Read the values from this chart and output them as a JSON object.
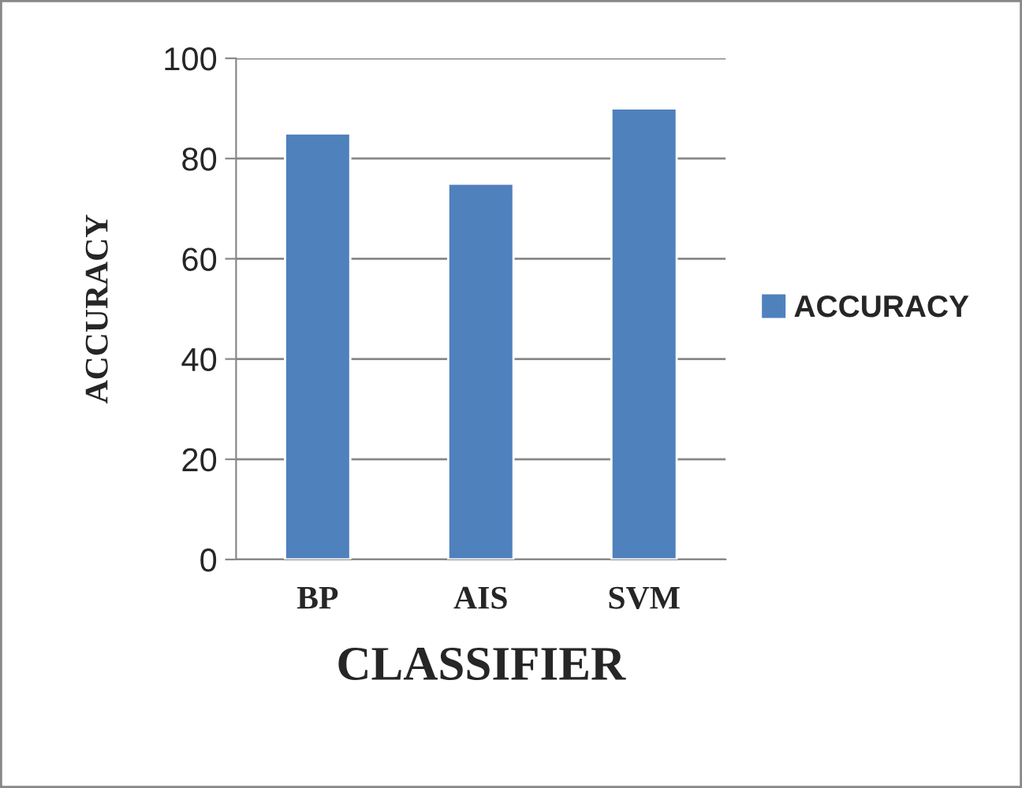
{
  "chart_data": {
    "type": "bar",
    "xlabel": "CLASSIFIER",
    "ylabel": "ACCURACY",
    "categories": [
      "BP",
      "AIS",
      "SVM"
    ],
    "series": [
      {
        "name": "ACCURACY",
        "color": "#4f81bd",
        "values": [
          85,
          75,
          90
        ]
      }
    ],
    "ylim": [
      0,
      100
    ],
    "yticks": [
      0,
      20,
      40,
      60,
      80,
      100
    ],
    "grid": "y",
    "legend": "right"
  }
}
